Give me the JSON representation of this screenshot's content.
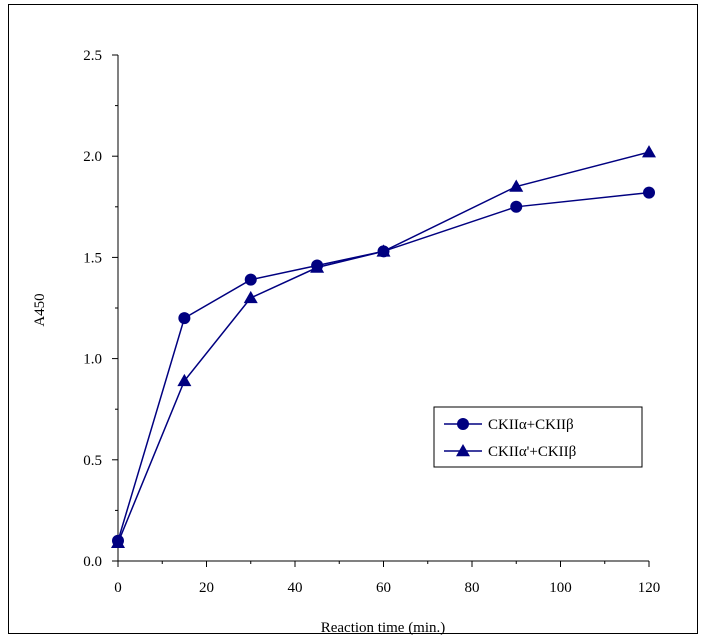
{
  "chart_data": {
    "type": "line",
    "title": "",
    "xlabel": "Reaction time (min.)",
    "ylabel": "A450",
    "xlim": [
      0,
      120
    ],
    "ylim": [
      0,
      2.5
    ],
    "x_ticks": [
      "0",
      "20",
      "40",
      "60",
      "80",
      "100",
      "120"
    ],
    "y_ticks": [
      "0.0",
      "0.5",
      "1.0",
      "1.5",
      "2.0",
      "2.5"
    ],
    "x_tick_values": [
      0,
      20,
      40,
      60,
      80,
      100,
      120
    ],
    "y_tick_values": [
      0,
      0.5,
      1.0,
      1.5,
      2.0,
      2.5
    ],
    "grid": false,
    "legend_position": "lower-right",
    "series": [
      {
        "name": "CKIIα+CKIIβ",
        "marker": "circle",
        "color": "#000080",
        "x": [
          0,
          15,
          30,
          45,
          60,
          90,
          120
        ],
        "y": [
          0.1,
          1.2,
          1.39,
          1.46,
          1.53,
          1.75,
          1.82
        ]
      },
      {
        "name": "CKIIα'+CKIIβ",
        "marker": "triangle",
        "color": "#000080",
        "x": [
          0,
          15,
          30,
          45,
          60,
          90,
          120
        ],
        "y": [
          0.09,
          0.89,
          1.3,
          1.45,
          1.53,
          1.85,
          2.02
        ]
      }
    ]
  }
}
